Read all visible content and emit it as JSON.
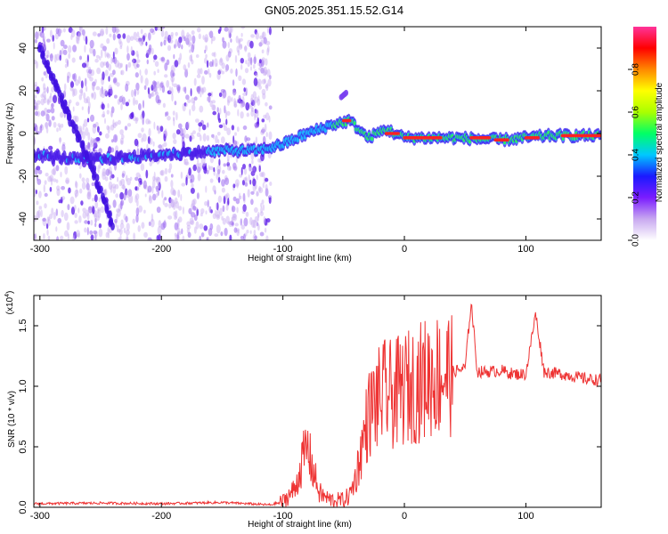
{
  "title": "GN05.2025.351.15.52.G14",
  "chart_data": [
    {
      "type": "heatmap",
      "name": "spectrogram",
      "xlabel": "Height of straight line (km)",
      "ylabel": "Frequency (Hz)",
      "xlim": [
        -305,
        162
      ],
      "ylim": [
        -50,
        50
      ],
      "x_ticks": [
        -300,
        -200,
        -100,
        0,
        100
      ],
      "x_tick_labels": [
        "-300",
        "-200",
        "-100",
        "0",
        "100"
      ],
      "y_ticks": [
        40,
        20,
        0,
        -20,
        -40
      ],
      "y_tick_labels": [
        "40",
        "20",
        "0",
        "-20",
        "-40"
      ],
      "noise_region_x": [
        -305,
        -110
      ],
      "ridges": [
        {
          "name": "main-trace",
          "points": [
            [
              -305,
              -10
            ],
            [
              -270,
              -12
            ],
            [
              -250,
              -12
            ],
            [
              -200,
              -10
            ],
            [
              -150,
              -8
            ],
            [
              -120,
              -8
            ],
            [
              -100,
              -5
            ],
            [
              -80,
              0
            ],
            [
              -60,
              4
            ],
            [
              -45,
              6
            ],
            [
              -30,
              -2
            ],
            [
              -15,
              2
            ],
            [
              0,
              -2
            ],
            [
              40,
              -2
            ],
            [
              80,
              -3
            ],
            [
              120,
              -1
            ],
            [
              162,
              -1
            ]
          ]
        },
        {
          "name": "descending-trace",
          "points": [
            [
              -300,
              40
            ],
            [
              -285,
              20
            ],
            [
              -270,
              0
            ],
            [
              -258,
              -15
            ],
            [
              -248,
              -30
            ],
            [
              -240,
              -45
            ]
          ]
        },
        {
          "name": "isolated-blob",
          "points": [
            [
              -52,
              17
            ],
            [
              -48,
              19
            ]
          ]
        }
      ],
      "hot_segments": [
        [
          -50,
          -45,
          6
        ],
        [
          -15,
          -5,
          0
        ],
        [
          0,
          30,
          -2
        ],
        [
          55,
          70,
          -2
        ],
        [
          75,
          85,
          -3
        ],
        [
          100,
          110,
          -2
        ],
        [
          130,
          162,
          -1
        ]
      ]
    },
    {
      "type": "line",
      "name": "snr",
      "xlabel": "Height of straight line (km)",
      "ylabel": "SNR (10 * v/v)",
      "scale_label": "(x10",
      "scale_exp": "4",
      "xlim": [
        -305,
        162
      ],
      "ylim": [
        0,
        1.75
      ],
      "x_ticks": [
        -300,
        -200,
        -100,
        0,
        100
      ],
      "x_tick_labels": [
        "-300",
        "-200",
        "-100",
        "0",
        "100"
      ],
      "y_ticks": [
        0.0,
        0.5,
        1.0,
        1.5
      ],
      "y_tick_labels": [
        "0.0",
        "0.5",
        "1.0",
        "1.5"
      ],
      "series": [
        {
          "name": "SNR",
          "color": "#ee3333",
          "x": [
            -305,
            -250,
            -200,
            -150,
            -110,
            -100,
            -95,
            -90,
            -85,
            -80,
            -75,
            -70,
            -65,
            -60,
            -50,
            -45,
            -40,
            -35,
            -30,
            -25,
            -20,
            -15,
            -10,
            -5,
            0,
            10,
            20,
            30,
            40,
            50,
            55,
            60,
            70,
            80,
            90,
            100,
            108,
            115,
            130,
            150,
            162
          ],
          "y": [
            0.03,
            0.035,
            0.03,
            0.04,
            0.02,
            0.05,
            0.1,
            0.15,
            0.35,
            0.5,
            0.3,
            0.12,
            0.08,
            0.06,
            0.06,
            0.1,
            0.25,
            0.5,
            0.75,
            0.85,
            0.9,
            0.95,
            0.92,
            0.95,
            0.98,
            1.02,
            1.08,
            1.1,
            1.12,
            1.15,
            1.7,
            1.12,
            1.12,
            1.13,
            1.1,
            1.1,
            1.6,
            1.12,
            1.1,
            1.06,
            1.05
          ]
        }
      ]
    }
  ],
  "colorbar": {
    "label": "Normalized spectral amplitude",
    "ticks": [
      0.0,
      0.2,
      0.4,
      0.6,
      0.8
    ],
    "tick_labels": [
      "0.0",
      "0.2",
      "0.4",
      "0.6",
      "0.8"
    ],
    "range": [
      0,
      1
    ],
    "colors": [
      "#ffffff",
      "#c8a8f0",
      "#7a1cff",
      "#1a1aff",
      "#00c8ff",
      "#00ff66",
      "#aaff00",
      "#ffff00",
      "#ff8800",
      "#ff0000",
      "#ff3399"
    ]
  }
}
